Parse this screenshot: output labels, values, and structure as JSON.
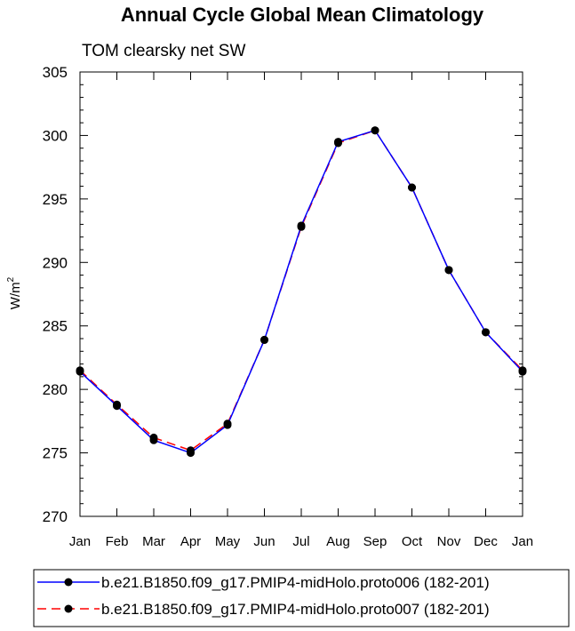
{
  "chart_data": {
    "type": "line",
    "title": "Annual Cycle Global Mean Climatology",
    "subtitle": "TOM clearsky net SW",
    "xlabel": "",
    "ylabel": "W/m",
    "ylabel_superscript": "2",
    "categories": [
      "Jan",
      "Feb",
      "Mar",
      "Apr",
      "May",
      "Jun",
      "Jul",
      "Aug",
      "Sep",
      "Oct",
      "Nov",
      "Dec",
      "Jan"
    ],
    "ylim": [
      270,
      305
    ],
    "yticks": [
      270,
      275,
      280,
      285,
      290,
      295,
      300,
      305
    ],
    "grid": false,
    "legend_position": "bottom",
    "series": [
      {
        "name": "b.e21.B1850.f09_g17.PMIP4-midHolo.proto006 (182-201)",
        "color": "#0000ff",
        "style": "solid",
        "marker": "filled-circle",
        "values": [
          281.4,
          278.7,
          276.0,
          275.0,
          277.2,
          283.9,
          292.9,
          299.5,
          300.4,
          295.9,
          289.4,
          284.5,
          281.4
        ]
      },
      {
        "name": "b.e21.B1850.f09_g17.PMIP4-midHolo.proto007 (182-201)",
        "color": "#ff0000",
        "style": "dashed",
        "marker": "filled-circle",
        "values": [
          281.5,
          278.8,
          276.2,
          275.2,
          277.3,
          283.9,
          292.8,
          299.4,
          300.4,
          295.9,
          289.4,
          284.5,
          281.5
        ]
      }
    ]
  }
}
